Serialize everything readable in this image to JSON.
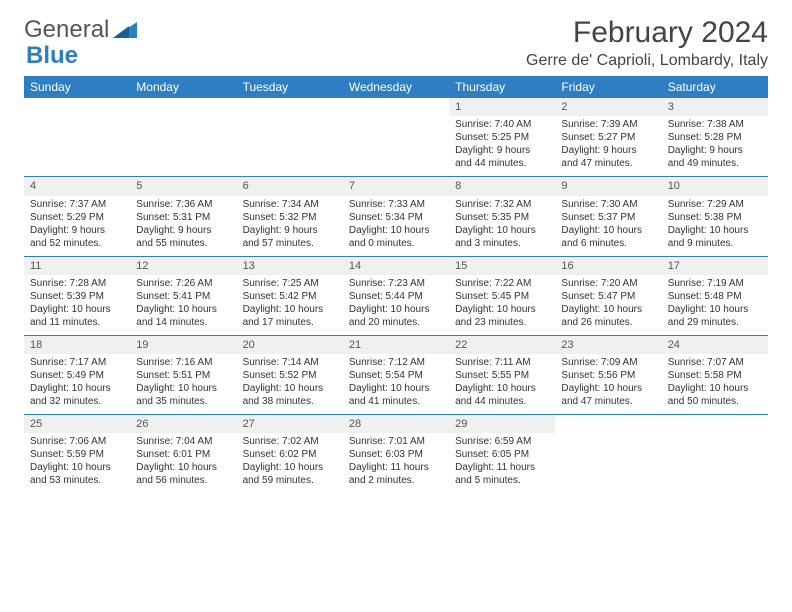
{
  "logo": {
    "word1": "General",
    "word2": "Blue"
  },
  "header": {
    "month_title": "February 2024",
    "location": "Gerre de' Caprioli, Lombardy, Italy"
  },
  "colors": {
    "accent": "#2f7ec2",
    "header_text": "#ffffff",
    "daynum_bg": "#f0f0f0",
    "text": "#333333",
    "bg": "#ffffff"
  },
  "days_of_week": [
    "Sunday",
    "Monday",
    "Tuesday",
    "Wednesday",
    "Thursday",
    "Friday",
    "Saturday"
  ],
  "weeks": [
    [
      null,
      null,
      null,
      null,
      {
        "n": "1",
        "sunrise": "Sunrise: 7:40 AM",
        "sunset": "Sunset: 5:25 PM",
        "day1": "Daylight: 9 hours",
        "day2": "and 44 minutes."
      },
      {
        "n": "2",
        "sunrise": "Sunrise: 7:39 AM",
        "sunset": "Sunset: 5:27 PM",
        "day1": "Daylight: 9 hours",
        "day2": "and 47 minutes."
      },
      {
        "n": "3",
        "sunrise": "Sunrise: 7:38 AM",
        "sunset": "Sunset: 5:28 PM",
        "day1": "Daylight: 9 hours",
        "day2": "and 49 minutes."
      }
    ],
    [
      {
        "n": "4",
        "sunrise": "Sunrise: 7:37 AM",
        "sunset": "Sunset: 5:29 PM",
        "day1": "Daylight: 9 hours",
        "day2": "and 52 minutes."
      },
      {
        "n": "5",
        "sunrise": "Sunrise: 7:36 AM",
        "sunset": "Sunset: 5:31 PM",
        "day1": "Daylight: 9 hours",
        "day2": "and 55 minutes."
      },
      {
        "n": "6",
        "sunrise": "Sunrise: 7:34 AM",
        "sunset": "Sunset: 5:32 PM",
        "day1": "Daylight: 9 hours",
        "day2": "and 57 minutes."
      },
      {
        "n": "7",
        "sunrise": "Sunrise: 7:33 AM",
        "sunset": "Sunset: 5:34 PM",
        "day1": "Daylight: 10 hours",
        "day2": "and 0 minutes."
      },
      {
        "n": "8",
        "sunrise": "Sunrise: 7:32 AM",
        "sunset": "Sunset: 5:35 PM",
        "day1": "Daylight: 10 hours",
        "day2": "and 3 minutes."
      },
      {
        "n": "9",
        "sunrise": "Sunrise: 7:30 AM",
        "sunset": "Sunset: 5:37 PM",
        "day1": "Daylight: 10 hours",
        "day2": "and 6 minutes."
      },
      {
        "n": "10",
        "sunrise": "Sunrise: 7:29 AM",
        "sunset": "Sunset: 5:38 PM",
        "day1": "Daylight: 10 hours",
        "day2": "and 9 minutes."
      }
    ],
    [
      {
        "n": "11",
        "sunrise": "Sunrise: 7:28 AM",
        "sunset": "Sunset: 5:39 PM",
        "day1": "Daylight: 10 hours",
        "day2": "and 11 minutes."
      },
      {
        "n": "12",
        "sunrise": "Sunrise: 7:26 AM",
        "sunset": "Sunset: 5:41 PM",
        "day1": "Daylight: 10 hours",
        "day2": "and 14 minutes."
      },
      {
        "n": "13",
        "sunrise": "Sunrise: 7:25 AM",
        "sunset": "Sunset: 5:42 PM",
        "day1": "Daylight: 10 hours",
        "day2": "and 17 minutes."
      },
      {
        "n": "14",
        "sunrise": "Sunrise: 7:23 AM",
        "sunset": "Sunset: 5:44 PM",
        "day1": "Daylight: 10 hours",
        "day2": "and 20 minutes."
      },
      {
        "n": "15",
        "sunrise": "Sunrise: 7:22 AM",
        "sunset": "Sunset: 5:45 PM",
        "day1": "Daylight: 10 hours",
        "day2": "and 23 minutes."
      },
      {
        "n": "16",
        "sunrise": "Sunrise: 7:20 AM",
        "sunset": "Sunset: 5:47 PM",
        "day1": "Daylight: 10 hours",
        "day2": "and 26 minutes."
      },
      {
        "n": "17",
        "sunrise": "Sunrise: 7:19 AM",
        "sunset": "Sunset: 5:48 PM",
        "day1": "Daylight: 10 hours",
        "day2": "and 29 minutes."
      }
    ],
    [
      {
        "n": "18",
        "sunrise": "Sunrise: 7:17 AM",
        "sunset": "Sunset: 5:49 PM",
        "day1": "Daylight: 10 hours",
        "day2": "and 32 minutes."
      },
      {
        "n": "19",
        "sunrise": "Sunrise: 7:16 AM",
        "sunset": "Sunset: 5:51 PM",
        "day1": "Daylight: 10 hours",
        "day2": "and 35 minutes."
      },
      {
        "n": "20",
        "sunrise": "Sunrise: 7:14 AM",
        "sunset": "Sunset: 5:52 PM",
        "day1": "Daylight: 10 hours",
        "day2": "and 38 minutes."
      },
      {
        "n": "21",
        "sunrise": "Sunrise: 7:12 AM",
        "sunset": "Sunset: 5:54 PM",
        "day1": "Daylight: 10 hours",
        "day2": "and 41 minutes."
      },
      {
        "n": "22",
        "sunrise": "Sunrise: 7:11 AM",
        "sunset": "Sunset: 5:55 PM",
        "day1": "Daylight: 10 hours",
        "day2": "and 44 minutes."
      },
      {
        "n": "23",
        "sunrise": "Sunrise: 7:09 AM",
        "sunset": "Sunset: 5:56 PM",
        "day1": "Daylight: 10 hours",
        "day2": "and 47 minutes."
      },
      {
        "n": "24",
        "sunrise": "Sunrise: 7:07 AM",
        "sunset": "Sunset: 5:58 PM",
        "day1": "Daylight: 10 hours",
        "day2": "and 50 minutes."
      }
    ],
    [
      {
        "n": "25",
        "sunrise": "Sunrise: 7:06 AM",
        "sunset": "Sunset: 5:59 PM",
        "day1": "Daylight: 10 hours",
        "day2": "and 53 minutes."
      },
      {
        "n": "26",
        "sunrise": "Sunrise: 7:04 AM",
        "sunset": "Sunset: 6:01 PM",
        "day1": "Daylight: 10 hours",
        "day2": "and 56 minutes."
      },
      {
        "n": "27",
        "sunrise": "Sunrise: 7:02 AM",
        "sunset": "Sunset: 6:02 PM",
        "day1": "Daylight: 10 hours",
        "day2": "and 59 minutes."
      },
      {
        "n": "28",
        "sunrise": "Sunrise: 7:01 AM",
        "sunset": "Sunset: 6:03 PM",
        "day1": "Daylight: 11 hours",
        "day2": "and 2 minutes."
      },
      {
        "n": "29",
        "sunrise": "Sunrise: 6:59 AM",
        "sunset": "Sunset: 6:05 PM",
        "day1": "Daylight: 11 hours",
        "day2": "and 5 minutes."
      },
      null,
      null
    ]
  ]
}
